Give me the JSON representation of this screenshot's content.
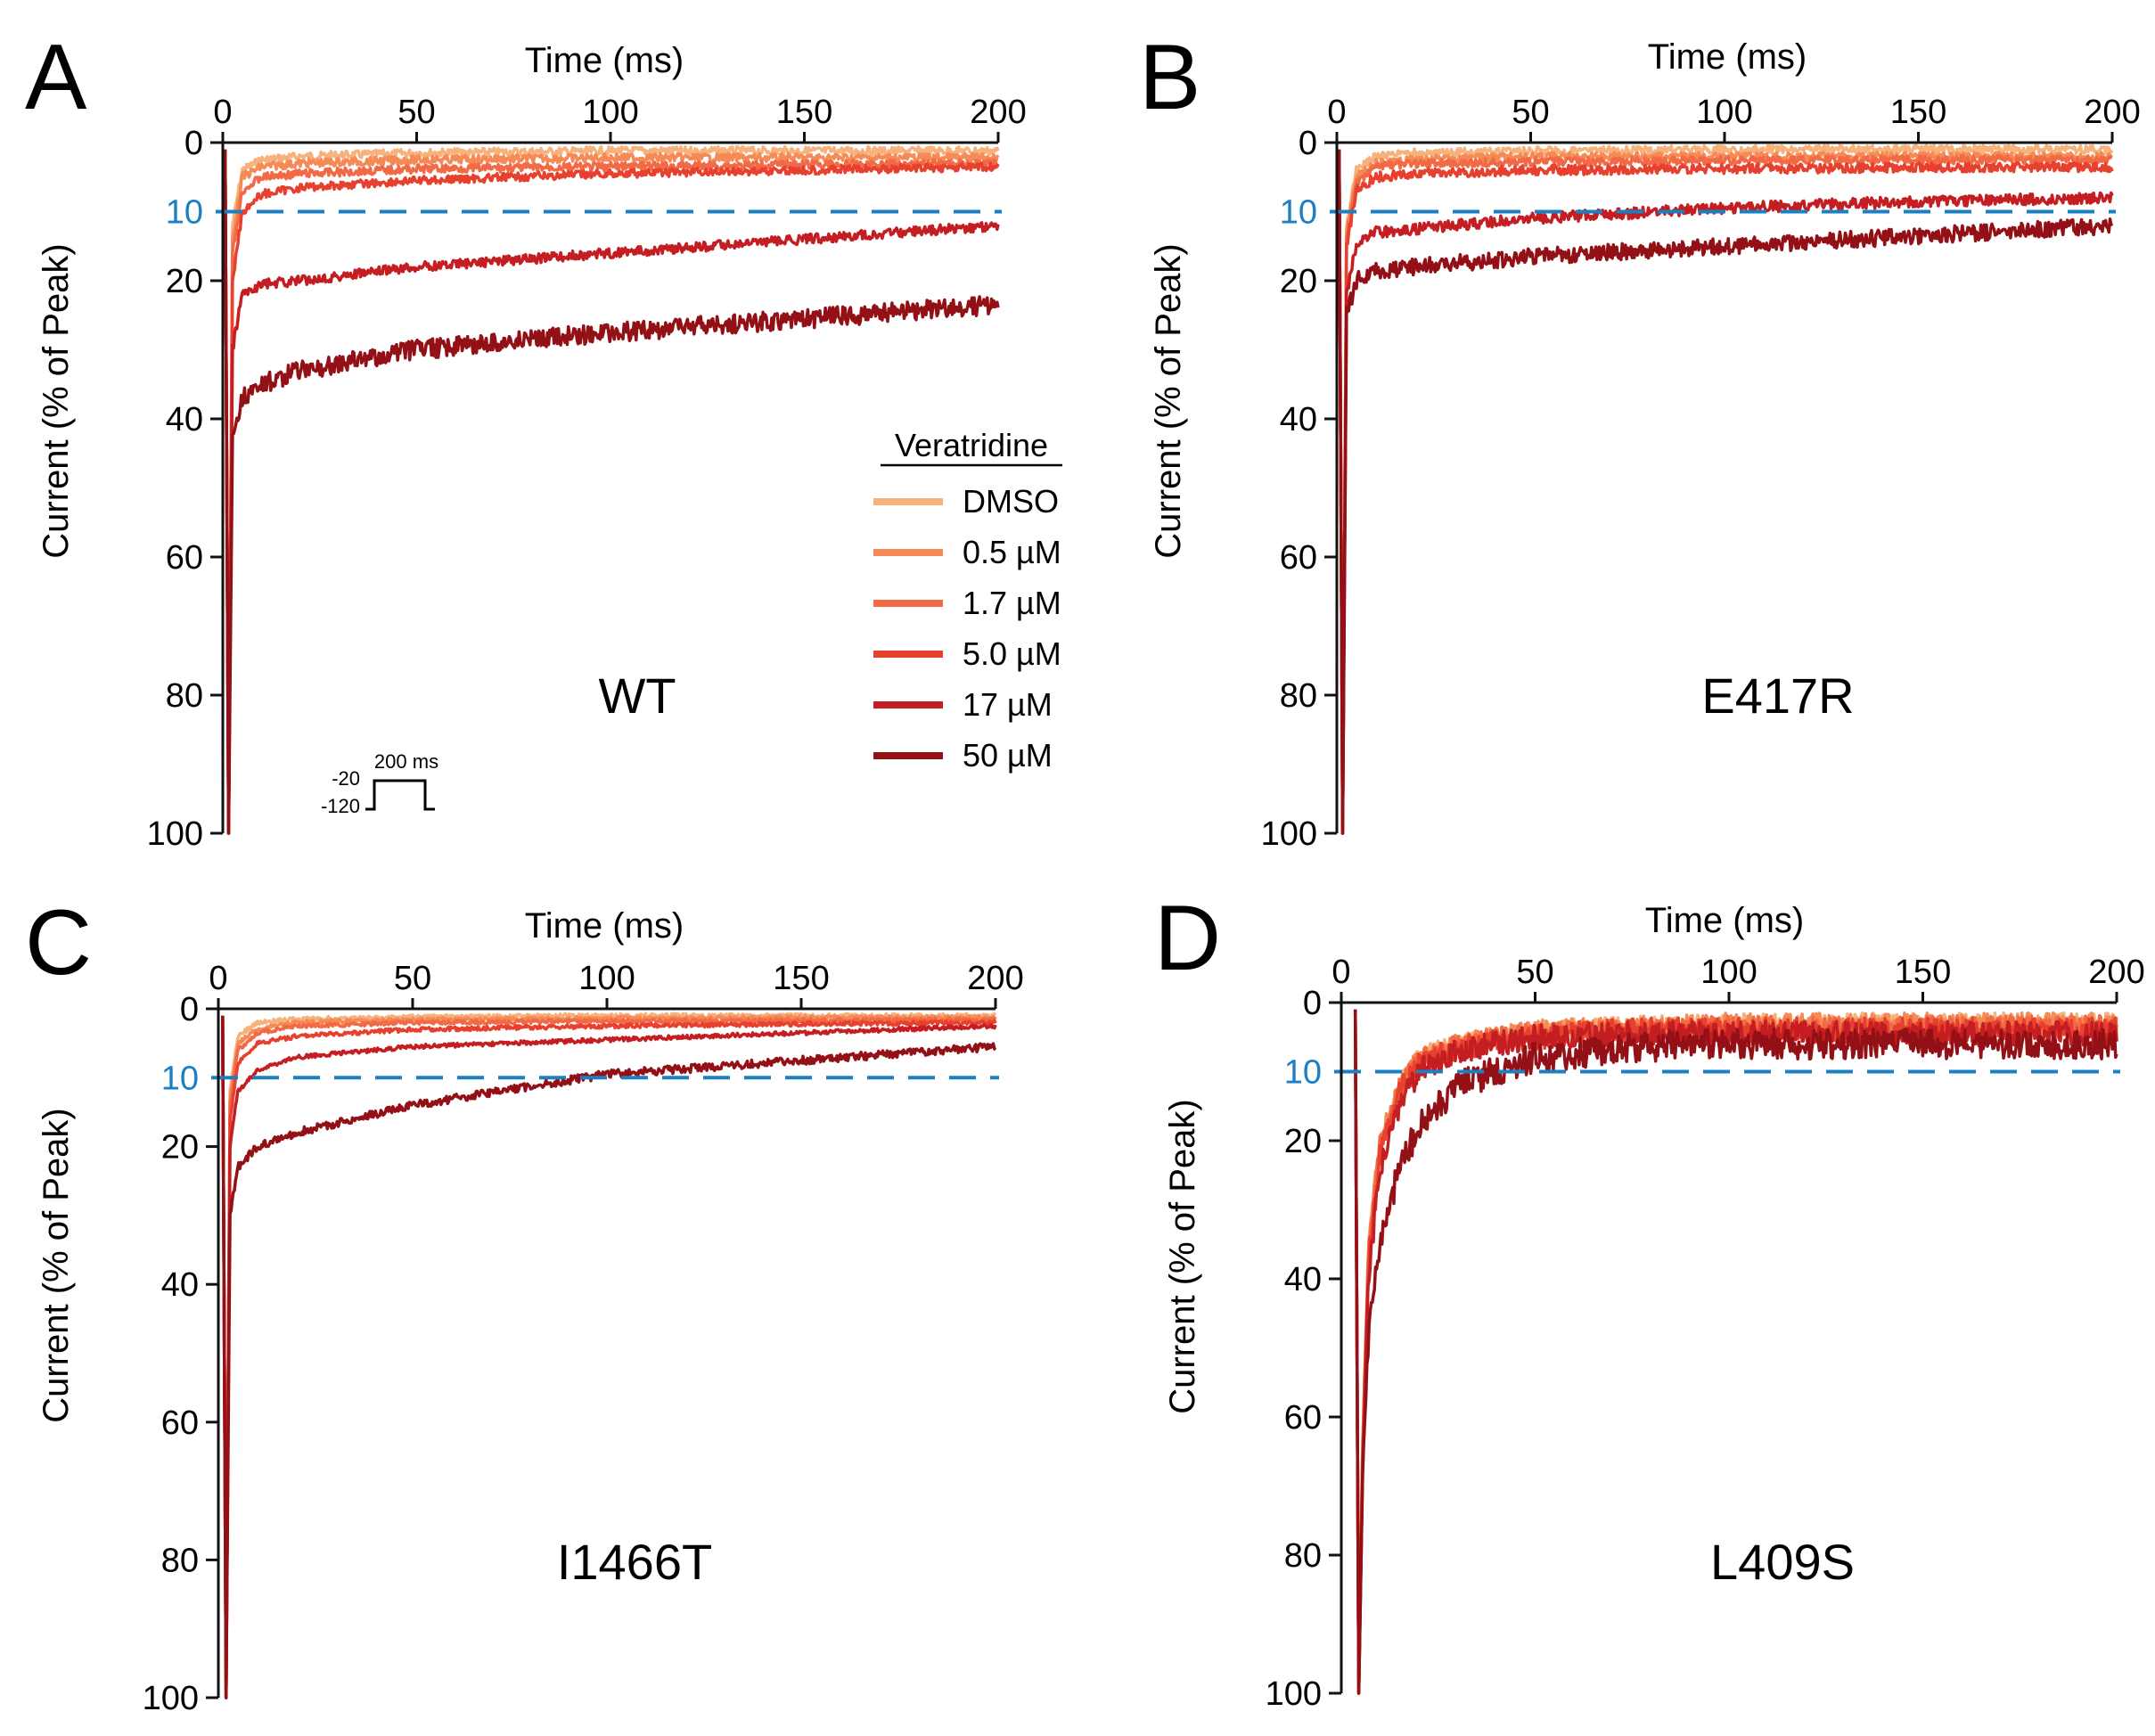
{
  "legend": {
    "title": "Veratridine",
    "entries": [
      {
        "label": "DMSO",
        "color": "#F7B27C"
      },
      {
        "label": "0.5 µM",
        "color": "#F58A57"
      },
      {
        "label": "1.7 µM",
        "color": "#F26A45"
      },
      {
        "label": "5.0 µM",
        "color": "#E8402E"
      },
      {
        "label": "17 µM",
        "color": "#C51E22"
      },
      {
        "label": "50 µM",
        "color": "#931116"
      }
    ]
  },
  "protocol": {
    "hold_label": "-120",
    "step_label": "-20",
    "duration_label": "200 ms"
  },
  "threshold": {
    "value": 10,
    "label": "10",
    "color": "#1B7FC1"
  },
  "axis_color": "#111111",
  "chart_data": [
    {
      "type": "line",
      "panel": "A",
      "construct": "WT",
      "xlabel": "Time (ms)",
      "ylabel": "Current (% of Peak)",
      "xlim": [
        0,
        200
      ],
      "ylim": [
        0,
        100
      ],
      "y_inverted": true,
      "xticks": [
        0,
        50,
        100,
        150,
        200
      ],
      "yticks": [
        0,
        20,
        40,
        60,
        80,
        100
      ],
      "peak_time": 1.5,
      "series": [
        {
          "name": "DMSO",
          "x": [
            2.5,
            5,
            10,
            20,
            50,
            100,
            150,
            200
          ],
          "y": [
            12,
            4,
            2.5,
            2,
            1.5,
            1.2,
            1.2,
            1.2
          ],
          "noise": 0.6
        },
        {
          "name": "0.5 µM",
          "x": [
            2.5,
            5,
            10,
            20,
            50,
            100,
            150,
            200
          ],
          "y": [
            14,
            5,
            3.5,
            3,
            2.5,
            2.2,
            2.2,
            2.2
          ],
          "noise": 0.6
        },
        {
          "name": "1.7 µM",
          "x": [
            2.5,
            5,
            10,
            20,
            50,
            100,
            150,
            200
          ],
          "y": [
            16,
            7,
            5,
            4.5,
            3.8,
            3.5,
            3.2,
            3
          ],
          "noise": 0.6
        },
        {
          "name": "5.0 µM",
          "x": [
            2.5,
            5,
            10,
            20,
            50,
            100,
            150,
            200
          ],
          "y": [
            20,
            10,
            7.5,
            6.5,
            5.5,
            4.5,
            4,
            3.5
          ],
          "noise": 0.6
        },
        {
          "name": "17 µM",
          "x": [
            2.5,
            5,
            10,
            20,
            50,
            100,
            150,
            200
          ],
          "y": [
            30,
            22,
            20.5,
            20,
            18,
            16,
            14,
            12
          ],
          "noise": 0.7
        },
        {
          "name": "50 µM",
          "x": [
            2.5,
            5,
            10,
            20,
            50,
            100,
            150,
            200
          ],
          "y": [
            42,
            37,
            35,
            33,
            30,
            27.5,
            25.5,
            23.5
          ],
          "noise": 1.4
        }
      ]
    },
    {
      "type": "line",
      "panel": "B",
      "construct": "E417R",
      "xlabel": "Time (ms)",
      "ylabel": "Current (% of Peak)",
      "xlim": [
        0,
        200
      ],
      "ylim": [
        0,
        100
      ],
      "y_inverted": true,
      "xticks": [
        0,
        50,
        100,
        150,
        200
      ],
      "yticks": [
        0,
        20,
        40,
        60,
        80,
        100
      ],
      "peak_time": 1.5,
      "series": [
        {
          "name": "DMSO",
          "x": [
            2.5,
            5,
            10,
            20,
            50,
            100,
            150,
            200
          ],
          "y": [
            12,
            4,
            2,
            1.5,
            1.2,
            1,
            1,
            1
          ],
          "noise": 0.6
        },
        {
          "name": "0.5 µM",
          "x": [
            2.5,
            5,
            10,
            20,
            50,
            100,
            150,
            200
          ],
          "y": [
            13,
            5,
            3,
            2.5,
            2,
            2,
            2,
            2
          ],
          "noise": 0.6
        },
        {
          "name": "1.7 µM",
          "x": [
            2.5,
            5,
            10,
            20,
            50,
            100,
            150,
            200
          ],
          "y": [
            14,
            6,
            3.5,
            3,
            2.8,
            2.6,
            2.5,
            2.5
          ],
          "noise": 0.6
        },
        {
          "name": "5.0 µM",
          "x": [
            2.5,
            5,
            10,
            20,
            50,
            100,
            150,
            200
          ],
          "y": [
            15,
            7,
            5,
            4.5,
            4,
            3.8,
            3.6,
            3.5
          ],
          "noise": 0.7
        },
        {
          "name": "17 µM",
          "x": [
            2.5,
            5,
            10,
            20,
            50,
            100,
            150,
            200
          ],
          "y": [
            22,
            15,
            13,
            12.5,
            11,
            9.5,
            8.5,
            8
          ],
          "noise": 0.8
        },
        {
          "name": "50 µM",
          "x": [
            2.5,
            5,
            10,
            20,
            50,
            100,
            150,
            200
          ],
          "y": [
            25,
            20,
            18.5,
            18,
            16.5,
            15,
            13.5,
            12
          ],
          "noise": 1.2
        }
      ]
    },
    {
      "type": "line",
      "panel": "C",
      "construct": "I1466T",
      "xlabel": "Time (ms)",
      "ylabel": "Current (% of Peak)",
      "xlim": [
        0,
        200
      ],
      "ylim": [
        0,
        100
      ],
      "y_inverted": true,
      "xticks": [
        0,
        50,
        100,
        150,
        200
      ],
      "yticks": [
        0,
        20,
        40,
        60,
        80,
        100
      ],
      "peak_time": 2,
      "series": [
        {
          "name": "DMSO",
          "x": [
            3,
            5,
            10,
            20,
            50,
            100,
            150,
            200
          ],
          "y": [
            12,
            4,
            2,
            1.5,
            1.2,
            1,
            1,
            1
          ],
          "noise": 0.3
        },
        {
          "name": "0.5 µM",
          "x": [
            3,
            5,
            10,
            20,
            50,
            100,
            150,
            200
          ],
          "y": [
            13,
            5,
            3,
            2,
            1.6,
            1.4,
            1.3,
            1.3
          ],
          "noise": 0.3
        },
        {
          "name": "1.7 µM",
          "x": [
            3,
            5,
            10,
            20,
            50,
            100,
            150,
            200
          ],
          "y": [
            14,
            6,
            3.5,
            2.5,
            2,
            1.8,
            1.7,
            1.6
          ],
          "noise": 0.3
        },
        {
          "name": "5.0 µM",
          "x": [
            3,
            5,
            10,
            20,
            50,
            100,
            150,
            200
          ],
          "y": [
            16,
            8,
            5,
            4,
            3,
            2.5,
            2.2,
            2
          ],
          "noise": 0.3
        },
        {
          "name": "17 µM",
          "x": [
            3,
            5,
            10,
            20,
            50,
            100,
            150,
            200
          ],
          "y": [
            20,
            12,
            9,
            7,
            5.5,
            4.5,
            3.5,
            2.5
          ],
          "noise": 0.3
        },
        {
          "name": "50 µM",
          "x": [
            3,
            5,
            10,
            20,
            50,
            100,
            150,
            200
          ],
          "y": [
            30,
            23,
            20,
            18,
            14,
            9.5,
            7.5,
            5.5
          ],
          "noise": 0.6
        }
      ]
    },
    {
      "type": "line",
      "panel": "D",
      "construct": "L409S",
      "xlabel": "Time (ms)",
      "ylabel": "Current (% of Peak)",
      "xlim": [
        0,
        200
      ],
      "ylim": [
        0,
        100
      ],
      "y_inverted": true,
      "xticks": [
        0,
        50,
        100,
        150,
        200
      ],
      "yticks": [
        0,
        20,
        40,
        60,
        80,
        100
      ],
      "peak_time": 4.5,
      "series": [
        {
          "name": "DMSO",
          "x": [
            5.5,
            7,
            10,
            15,
            20,
            30,
            50,
            75,
            100,
            150,
            200
          ],
          "y": [
            65,
            35,
            20,
            12,
            8,
            6,
            4,
            3.5,
            3,
            3,
            3
          ],
          "noise": 1.5
        },
        {
          "name": "0.5 µM",
          "x": [
            5.5,
            7,
            10,
            15,
            20,
            30,
            50,
            75,
            100,
            150,
            200
          ],
          "y": [
            65,
            35,
            20,
            12,
            8,
            6,
            4,
            3.5,
            3,
            3,
            3
          ],
          "noise": 1.5
        },
        {
          "name": "1.7 µM",
          "x": [
            5.5,
            7,
            10,
            15,
            20,
            30,
            50,
            75,
            100,
            150,
            200
          ],
          "y": [
            65,
            36,
            20,
            12.5,
            8.5,
            6,
            4.5,
            4,
            3.5,
            3.5,
            3.5
          ],
          "noise": 1.6
        },
        {
          "name": "5.0 µM",
          "x": [
            5.5,
            7,
            10,
            15,
            20,
            30,
            50,
            75,
            100,
            150,
            200
          ],
          "y": [
            66,
            38,
            22,
            13,
            9,
            6.5,
            5,
            4,
            4,
            4,
            4
          ],
          "noise": 1.8
        },
        {
          "name": "17 µM",
          "x": [
            5.5,
            7,
            10,
            15,
            20,
            30,
            50,
            75,
            100,
            150,
            200
          ],
          "y": [
            68,
            40,
            24,
            15,
            10,
            7,
            5,
            4.5,
            4.5,
            4.5,
            4.5
          ],
          "noise": 1.8
        },
        {
          "name": "50 µM",
          "x": [
            5.5,
            7,
            10,
            15,
            20,
            30,
            50,
            75,
            100,
            150,
            200
          ],
          "y": [
            70,
            48,
            35,
            24,
            18,
            12,
            8,
            6.5,
            6,
            6,
            6
          ],
          "noise": 2.2
        }
      ]
    }
  ]
}
